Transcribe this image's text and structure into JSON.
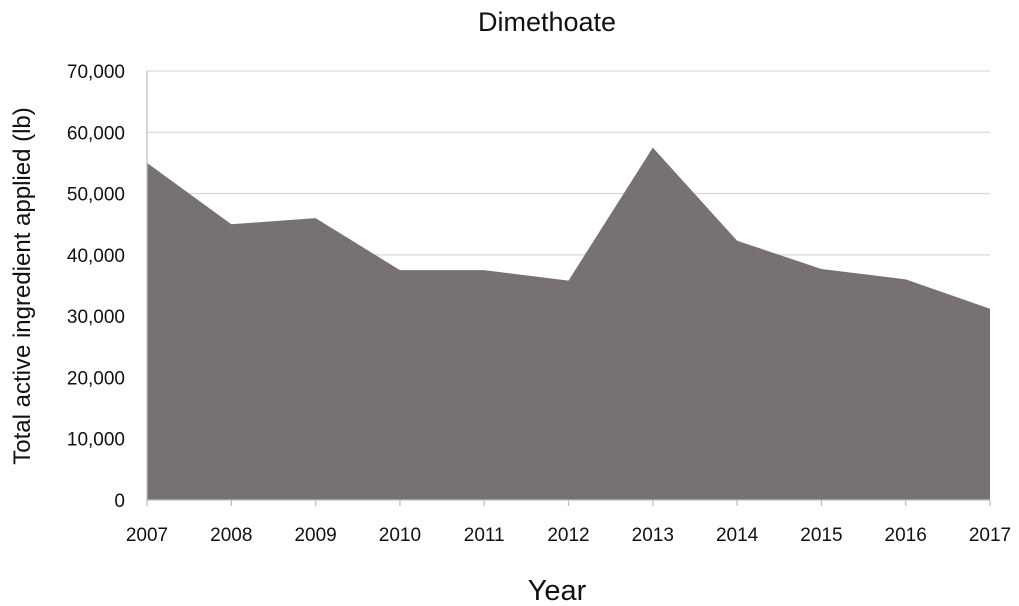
{
  "chart_data": {
    "type": "area",
    "title": "Dimethoate",
    "xlabel": "Year",
    "ylabel": "Total active ingredient applied (lb)",
    "x": [
      "2007",
      "2008",
      "2009",
      "2010",
      "2011",
      "2012",
      "2013",
      "2014",
      "2015",
      "2016",
      "2017"
    ],
    "series": [
      {
        "values": [
          55000,
          45000,
          46000,
          37500,
          37500,
          35800,
          57500,
          42300,
          37700,
          36000,
          31200
        ]
      }
    ],
    "ylim": [
      0,
      70000
    ],
    "yticks": [
      0,
      10000,
      20000,
      30000,
      40000,
      50000,
      60000,
      70000
    ],
    "ytick_labels": [
      "0",
      "10,000",
      "20,000",
      "30,000",
      "40,000",
      "50,000",
      "60,000",
      "70,000"
    ],
    "grid": true,
    "colors": {
      "fill": "#777171",
      "grid": "#d9d9d9",
      "axis": "#bfbfbf"
    }
  }
}
